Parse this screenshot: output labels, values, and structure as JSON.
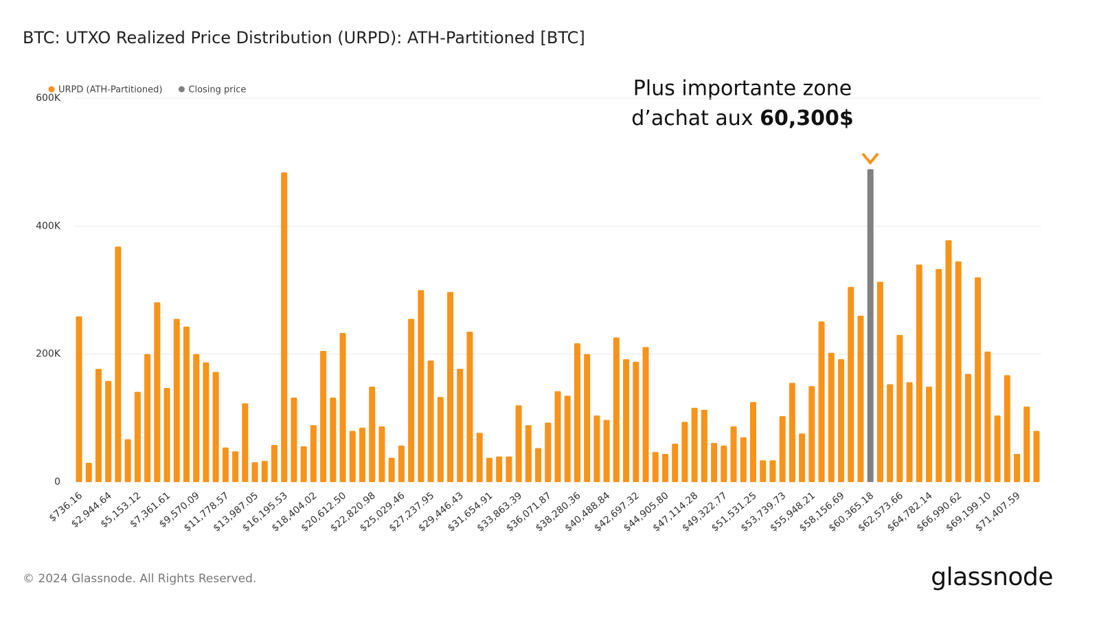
{
  "chart_data": {
    "type": "bar",
    "title": "BTC: UTXO Realized Price Distribution (URPD): ATH-Partitioned [BTC]",
    "categories": [
      "$736.16",
      null,
      null,
      "$2,944.64",
      null,
      null,
      "$5,153.12",
      null,
      null,
      "$7,361.61",
      null,
      null,
      "$9,570.09",
      null,
      null,
      "$11,778.57",
      null,
      null,
      "$13,987.05",
      null,
      null,
      "$16,195.53",
      null,
      null,
      "$18,404.02",
      null,
      null,
      "$20,612.50",
      null,
      null,
      "$22,820.98",
      null,
      null,
      "$25,029.46",
      null,
      null,
      "$27,237.95",
      null,
      null,
      "$29,446.43",
      null,
      null,
      "$31,654.91",
      null,
      null,
      "$33,863.39",
      null,
      null,
      "$36,071.87",
      null,
      null,
      "$38,280.36",
      null,
      null,
      "$40,488.84",
      null,
      null,
      "$42,697.32",
      null,
      null,
      "$44,905.80",
      null,
      null,
      "$47,114.28",
      null,
      null,
      "$49,322.77",
      null,
      null,
      "$51,531.25",
      null,
      null,
      "$53,739.73",
      null,
      null,
      "$55,948.21",
      null,
      null,
      "$58,156.69",
      null,
      null,
      "$60,365.18",
      null,
      null,
      "$62,573.66",
      null,
      null,
      "$64,782.14",
      null,
      null,
      "$66,990.62",
      null,
      null,
      "$69,199.10",
      null,
      null,
      "$71,407.59",
      null,
      null
    ],
    "series": [
      {
        "name": "URPD (ATH-Partitioned)",
        "color": "#f7931a",
        "values": [
          259000,
          30000,
          177000,
          158000,
          368000,
          67000,
          141000,
          200000,
          281000,
          147000,
          255000,
          243000,
          200000,
          187000,
          172000,
          54000,
          48000,
          123000,
          31000,
          33000,
          58000,
          484000,
          132000,
          56000,
          89000,
          205000,
          132000,
          233000,
          80000,
          85000,
          149000,
          87000,
          38000,
          57000,
          255000,
          300000,
          190000,
          133000,
          297000,
          177000,
          235000,
          77000,
          38000,
          40000,
          40000,
          120000,
          89000,
          53000,
          93000,
          142000,
          135000,
          217000,
          200000,
          104000,
          97000,
          226000,
          192000,
          188000,
          211000,
          47000,
          44000,
          60000,
          94000,
          116000,
          113000,
          61000,
          57000,
          87000,
          70000,
          125000,
          34000,
          34000,
          103000,
          155000,
          76000,
          150000,
          251000,
          202000,
          192000,
          305000,
          260000,
          null,
          313000,
          153000,
          230000,
          156000,
          340000,
          149000,
          333000,
          378000,
          345000,
          169000,
          320000,
          204000,
          104000,
          167000,
          44000,
          118000,
          80000
        ]
      },
      {
        "name": "Closing price",
        "color": "#808080",
        "values": [
          null,
          null,
          null,
          null,
          null,
          null,
          null,
          null,
          null,
          null,
          null,
          null,
          null,
          null,
          null,
          null,
          null,
          null,
          null,
          null,
          null,
          null,
          null,
          null,
          null,
          null,
          null,
          null,
          null,
          null,
          null,
          null,
          null,
          null,
          null,
          null,
          null,
          null,
          null,
          null,
          null,
          null,
          null,
          null,
          null,
          null,
          null,
          null,
          null,
          null,
          null,
          null,
          null,
          null,
          null,
          null,
          null,
          null,
          null,
          null,
          null,
          null,
          null,
          null,
          null,
          null,
          null,
          null,
          null,
          null,
          null,
          null,
          null,
          null,
          null,
          null,
          null,
          null,
          null,
          null,
          null,
          489000,
          null,
          null,
          null,
          null,
          null,
          null,
          null,
          null,
          null,
          null,
          null,
          null,
          null,
          null,
          null,
          null,
          null
        ]
      }
    ],
    "ylim": [
      0,
      600000
    ],
    "yticks": [
      0,
      {
        "value": 200000,
        "label": "200K"
      },
      {
        "value": 400000,
        "label": "400K"
      },
      {
        "value": 600000,
        "label": "600K"
      }
    ],
    "grid": true,
    "annotation": {
      "lines": [
        "Plus importante zone",
        "d’achat aux"
      ],
      "emphasis": "60,300$"
    }
  },
  "footer": {
    "copyright": "© 2024 Glassnode. All Rights Reserved.",
    "brand": "glassnode"
  }
}
